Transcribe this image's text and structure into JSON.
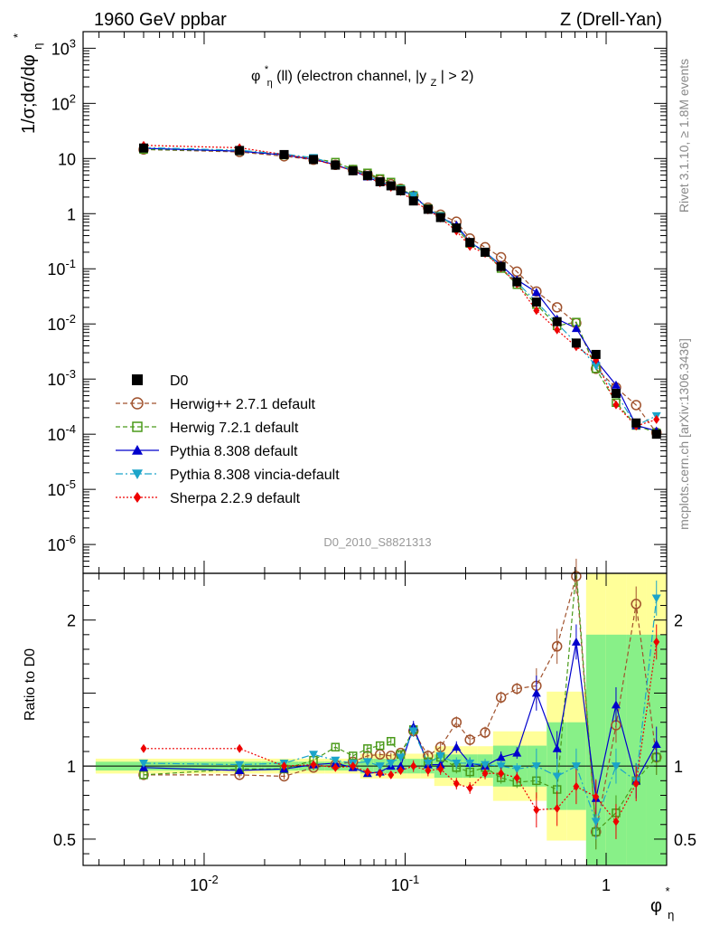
{
  "header": {
    "energy_label": "1960 GeV ppbar",
    "process_label": "Z (Drell-Yan)"
  },
  "side_labels": {
    "rivet": "Rivet 3.1.10, ≥ 1.8M events",
    "source": "mcplots.cern.ch [arXiv:1306.3436]"
  },
  "watermark": "D0_2010_S8821313",
  "colors": {
    "data": "#000000",
    "herwigpp": "#a0522d",
    "herwig7": "#4a9a1a",
    "pythia": "#0000cc",
    "vincia": "#1ba4c9",
    "sherpa": "#ee0000",
    "band_yellow": "#ffff99",
    "band_green": "#88f088"
  },
  "chart_data": {
    "type": "scatter",
    "title": "φη*(ll) (electron channel, |yZ| > 2)",
    "title_parts": {
      "main": "φ",
      "sup": "*",
      "sub": "η",
      "rest": "(ll) (electron channel, |y",
      "rest_sub": "Z",
      "tail": "| > 2)"
    },
    "xlabel": "φη*",
    "ylabel_main": "1/σ;dσ/dφη*",
    "ylabel_ratio": "Ratio to D0",
    "xscale": "log",
    "xlim": [
      0.0025,
      2.0
    ],
    "main_yscale": "log",
    "main_ylim": [
      3e-07,
      2000
    ],
    "ratio_ylim": [
      0.32,
      2.32
    ],
    "x_ticks": [
      "10^-2",
      "10^-1",
      "1"
    ],
    "main_y_ticks": [
      "10^-6",
      "10^-5",
      "10^-4",
      "10^-3",
      "10^-2",
      "10^-1",
      "1",
      "10",
      "10^2",
      "10^3"
    ],
    "ratio_y_ticks": [
      "0.5",
      "1",
      "2"
    ],
    "legend_position": "lower-left",
    "x": [
      0.005,
      0.015,
      0.025,
      0.035,
      0.045,
      0.055,
      0.065,
      0.075,
      0.085,
      0.095,
      0.11,
      0.13,
      0.15,
      0.18,
      0.21,
      0.25,
      0.3,
      0.36,
      0.45,
      0.57,
      0.71,
      0.89,
      1.12,
      1.41,
      1.78
    ],
    "series": [
      {
        "key": "data",
        "name": "D0",
        "values": [
          15.5,
          14.0,
          11.8,
          9.6,
          7.6,
          6.0,
          4.9,
          3.8,
          3.2,
          2.6,
          1.7,
          1.2,
          0.85,
          0.55,
          0.3,
          0.2,
          0.11,
          0.058,
          0.025,
          0.011,
          0.0045,
          0.0028,
          0.00055,
          0.00016,
          0.0001
        ]
      },
      {
        "key": "herwigpp",
        "name": "Herwig++ 2.7.1 default",
        "ratio": [
          0.94,
          0.94,
          0.93,
          0.99,
          1.01,
          1.03,
          1.07,
          1.08,
          1.07,
          1.09,
          1.24,
          1.07,
          1.13,
          1.3,
          1.18,
          1.23,
          1.47,
          1.53,
          1.55,
          1.82,
          2.3,
          0.55,
          1.28,
          2.11,
          1.06
        ]
      },
      {
        "key": "herwig7",
        "name": "Herwig 7.2.1 default",
        "ratio": [
          0.94,
          0.98,
          0.98,
          1.04,
          1.13,
          1.07,
          1.12,
          1.14,
          1.17,
          1.08,
          1.25,
          1.03,
          1.06,
          0.99,
          0.96,
          0.99,
          0.92,
          0.89,
          0.9,
          0.84,
          2.4,
          0.55,
          0.68,
          0.9,
          1.06
        ]
      },
      {
        "key": "pythia",
        "name": "Pythia 8.308 default",
        "ratio": [
          0.99,
          0.97,
          0.98,
          1.01,
          1.02,
          0.99,
          0.95,
          0.96,
          1.0,
          1.0,
          1.27,
          1.01,
          1.01,
          1.13,
          1.02,
          1.0,
          1.06,
          1.09,
          1.5,
          1.12,
          1.85,
          0.78,
          1.42,
          0.9,
          1.15
        ]
      },
      {
        "key": "vincia",
        "name": "Pythia 8.308 vincia-default",
        "ratio": [
          1.02,
          1.01,
          1.02,
          1.08,
          1.04,
          1.02,
          1.03,
          1.0,
          1.02,
          1.06,
          1.24,
          1.02,
          1.07,
          1.02,
          1.02,
          1.01,
          1.0,
          0.98,
          1.0,
          0.93,
          1.0,
          0.62,
          1.0,
          0.9,
          2.15
        ]
      },
      {
        "key": "sherpa",
        "name": "Sherpa 2.2.9 default",
        "ratio": [
          1.12,
          1.12,
          1.0,
          1.01,
          0.99,
          1.0,
          0.96,
          0.95,
          0.94,
          0.97,
          1.0,
          0.97,
          0.98,
          0.88,
          0.85,
          0.95,
          0.95,
          0.92,
          0.7,
          0.71,
          0.86,
          0.79,
          0.62,
          0.88,
          1.85
        ]
      }
    ]
  }
}
